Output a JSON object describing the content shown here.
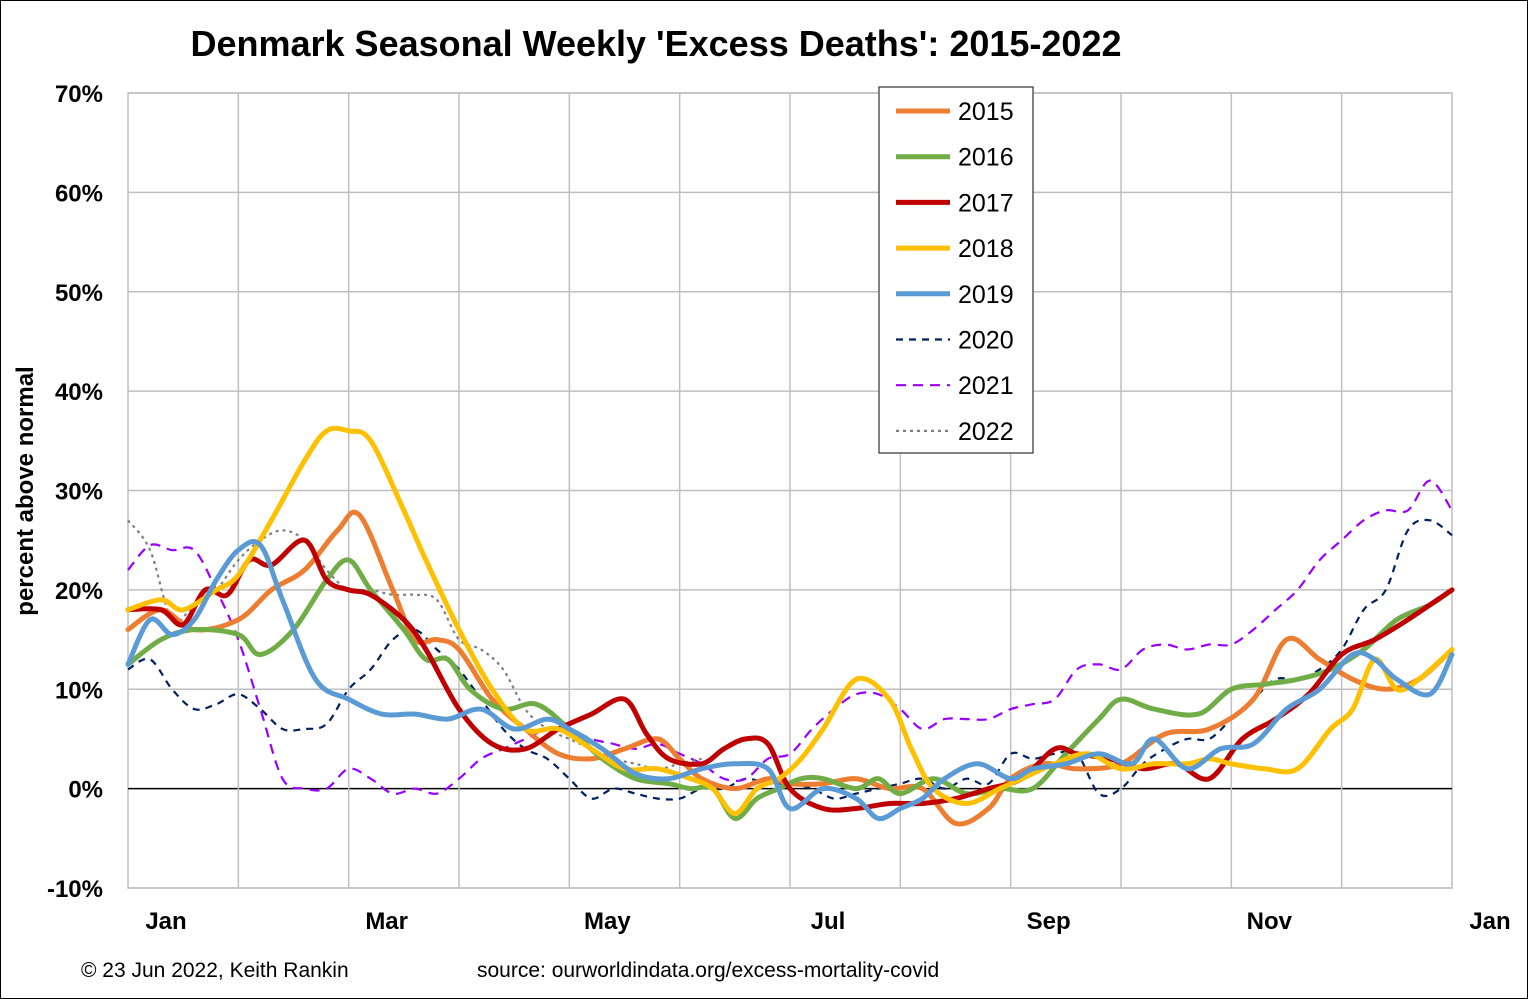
{
  "chart_data": {
    "type": "line",
    "title": "Denmark Seasonal Weekly 'Excess Deaths': 2015-2022",
    "ylabel": "percent above normal",
    "xlabel": "",
    "ylim": [
      -10,
      70
    ],
    "yticks": [
      "-10%",
      "0%",
      "10%",
      "20%",
      "30%",
      "40%",
      "50%",
      "60%",
      "70%"
    ],
    "xticks": [
      "Jan",
      "Mar",
      "May",
      "Jul",
      "Sep",
      "Nov",
      "Jan"
    ],
    "x_unit": "month of year (1 = Jan 1, 13 = Jan 1 next year)",
    "xlim": [
      1,
      13
    ],
    "grid": true,
    "legend_position": "top-center",
    "series": [
      {
        "name": "2015",
        "color": "#ED7D31",
        "dash": "solid",
        "x": [
          1.0,
          1.3,
          1.6,
          2.0,
          2.3,
          2.6,
          2.9,
          3.1,
          3.4,
          3.6,
          3.8,
          4.0,
          4.3,
          4.6,
          4.9,
          5.2,
          5.5,
          5.8,
          6.0,
          6.2,
          6.5,
          6.8,
          7.0,
          7.3,
          7.6,
          7.9,
          8.2,
          8.5,
          8.8,
          9.0,
          9.3,
          9.6,
          10.0,
          10.4,
          10.8,
          11.2,
          11.5,
          11.8,
          12.1,
          12.4,
          12.7,
          13.0
        ],
        "values": [
          16,
          18,
          16,
          17,
          20,
          22,
          26,
          27.5,
          20,
          15,
          15,
          14,
          9,
          6,
          3.5,
          3,
          4,
          5,
          3,
          1,
          0,
          1,
          0.5,
          0.5,
          1,
          0,
          0,
          -3.5,
          -2,
          1,
          2.5,
          2,
          2.5,
          5.5,
          6,
          9,
          15,
          13,
          11,
          10,
          11,
          14
        ]
      },
      {
        "name": "2016",
        "color": "#70AD47",
        "dash": "solid",
        "x": [
          1.0,
          1.3,
          1.6,
          2.0,
          2.2,
          2.5,
          2.8,
          3.0,
          3.2,
          3.5,
          3.7,
          3.9,
          4.1,
          4.4,
          4.7,
          5.0,
          5.3,
          5.6,
          5.9,
          6.1,
          6.3,
          6.5,
          6.7,
          6.9,
          7.1,
          7.3,
          7.6,
          7.8,
          8.0,
          8.3,
          8.6,
          8.9,
          9.2,
          9.5,
          9.8,
          10.0,
          10.3,
          10.7,
          11.0,
          11.3,
          11.6,
          11.9,
          12.2,
          12.5,
          12.8,
          13.0
        ],
        "values": [
          12.5,
          15,
          16,
          15.5,
          13.5,
          16,
          21,
          23,
          20,
          16,
          13,
          13,
          10,
          8,
          8.5,
          6,
          3,
          1,
          0.5,
          0,
          0,
          -3,
          -1,
          0,
          1,
          1,
          0,
          1,
          -0.5,
          1,
          -0.5,
          0,
          0,
          3.5,
          7,
          9,
          8,
          7.5,
          10,
          10.5,
          11,
          12,
          14,
          17,
          18.5,
          20
        ]
      },
      {
        "name": "2017",
        "color": "#C00000",
        "dash": "solid",
        "x": [
          1.0,
          1.3,
          1.5,
          1.7,
          1.9,
          2.1,
          2.3,
          2.6,
          2.8,
          3.0,
          3.2,
          3.5,
          3.7,
          4.0,
          4.3,
          4.6,
          4.9,
          5.2,
          5.5,
          5.7,
          5.9,
          6.2,
          6.4,
          6.6,
          6.8,
          7.0,
          7.3,
          7.6,
          7.9,
          8.2,
          8.5,
          8.8,
          9.1,
          9.4,
          9.6,
          9.9,
          10.2,
          10.5,
          10.8,
          11.1,
          11.4,
          11.7,
          12.0,
          12.3,
          12.6,
          13.0
        ],
        "values": [
          18,
          18,
          16.5,
          20,
          19.5,
          23,
          22.5,
          25,
          21,
          20,
          19.5,
          17,
          14,
          8,
          4.5,
          4,
          6,
          7.5,
          9,
          5.5,
          3,
          2.5,
          4,
          5,
          4.5,
          0,
          -2,
          -2,
          -1.5,
          -1.5,
          -1,
          0,
          1,
          4,
          3.5,
          3,
          2,
          2.5,
          1,
          5,
          7,
          9.5,
          13.5,
          15,
          17,
          20
        ]
      },
      {
        "name": "2018",
        "color": "#FFC000",
        "dash": "solid",
        "x": [
          1.0,
          1.3,
          1.5,
          1.8,
          2.0,
          2.3,
          2.6,
          2.8,
          3.0,
          3.2,
          3.5,
          3.7,
          4.0,
          4.3,
          4.6,
          4.9,
          5.2,
          5.5,
          5.8,
          6.1,
          6.3,
          6.5,
          6.7,
          6.9,
          7.1,
          7.3,
          7.6,
          7.9,
          8.1,
          8.3,
          8.6,
          8.9,
          9.1,
          9.4,
          9.7,
          10.0,
          10.3,
          10.6,
          10.8,
          11.0,
          11.3,
          11.6,
          11.9,
          12.1,
          12.3,
          12.5,
          12.7,
          13.0
        ],
        "values": [
          18,
          19,
          18,
          20,
          21.5,
          27,
          33,
          36,
          36,
          35,
          28,
          23,
          16,
          10,
          6,
          6,
          4,
          2,
          2,
          1,
          0,
          -2.5,
          0,
          1,
          3,
          6,
          11,
          9,
          4,
          0,
          -1.5,
          0,
          1,
          2.5,
          3.5,
          2,
          2.5,
          2.5,
          3,
          2.5,
          2,
          2,
          6,
          8,
          13,
          10,
          11,
          14
        ]
      },
      {
        "name": "2019",
        "color": "#5B9BD5",
        "dash": "solid",
        "x": [
          1.0,
          1.2,
          1.4,
          1.6,
          1.8,
          2.0,
          2.2,
          2.4,
          2.7,
          3.0,
          3.3,
          3.6,
          3.9,
          4.2,
          4.5,
          4.8,
          5.0,
          5.3,
          5.6,
          5.9,
          6.2,
          6.5,
          6.8,
          7.0,
          7.3,
          7.6,
          7.8,
          8.0,
          8.2,
          8.4,
          8.7,
          9.0,
          9.2,
          9.5,
          9.8,
          10.1,
          10.3,
          10.6,
          10.9,
          11.2,
          11.5,
          11.8,
          12.1,
          12.3,
          12.5,
          12.8,
          13.0
        ],
        "values": [
          12.5,
          17,
          15.5,
          17,
          21,
          24,
          24.5,
          19,
          11,
          9,
          7.5,
          7.5,
          7,
          8,
          6,
          7,
          6,
          4,
          1.5,
          1,
          2,
          2.5,
          2,
          -2,
          0,
          -1,
          -3,
          -2,
          -1,
          1,
          2.5,
          1,
          2,
          2.5,
          3.5,
          2.5,
          5,
          2,
          4,
          4.5,
          8,
          10,
          13.5,
          13,
          11,
          9.5,
          13.5
        ]
      },
      {
        "name": "2020",
        "color": "#002060",
        "dash": "7,6",
        "x": [
          1.0,
          1.2,
          1.4,
          1.6,
          1.8,
          2.0,
          2.2,
          2.4,
          2.6,
          2.8,
          3.0,
          3.2,
          3.4,
          3.6,
          3.8,
          4.0,
          4.2,
          4.4,
          4.6,
          4.8,
          5.0,
          5.2,
          5.4,
          5.6,
          5.8,
          6.0,
          6.2,
          6.4,
          6.6,
          6.8,
          7.0,
          7.2,
          7.4,
          7.6,
          7.8,
          8.0,
          8.2,
          8.4,
          8.6,
          8.8,
          9.0,
          9.2,
          9.4,
          9.6,
          9.8,
          10.0,
          10.2,
          10.4,
          10.6,
          10.8,
          11.0,
          11.2,
          11.4,
          11.6,
          11.8,
          12.0,
          12.2,
          12.4,
          12.6,
          12.8,
          13.0
        ],
        "values": [
          12,
          13,
          10,
          8,
          8.5,
          9.5,
          8,
          6,
          6,
          6.5,
          10,
          12,
          15,
          16,
          14,
          12,
          9,
          6,
          4,
          3,
          1,
          -1,
          0,
          -0.5,
          -1,
          -1,
          0,
          0,
          1,
          0.5,
          0.5,
          0,
          -1,
          -0.5,
          0,
          0.5,
          1,
          0,
          1,
          0.5,
          3.5,
          3,
          3.5,
          3.5,
          -0.5,
          0,
          2.5,
          4,
          5,
          5,
          7,
          9,
          11,
          11,
          12,
          14,
          18,
          20,
          26,
          27,
          25.5
        ]
      },
      {
        "name": "2021",
        "color": "#9900FF",
        "dash": "10,7",
        "x": [
          1.0,
          1.2,
          1.4,
          1.6,
          1.8,
          2.0,
          2.2,
          2.4,
          2.6,
          2.8,
          3.0,
          3.2,
          3.4,
          3.6,
          3.8,
          4.0,
          4.2,
          4.4,
          4.6,
          4.8,
          5.0,
          5.2,
          5.4,
          5.6,
          5.8,
          6.0,
          6.2,
          6.4,
          6.6,
          6.8,
          7.0,
          7.2,
          7.4,
          7.6,
          7.8,
          8.0,
          8.2,
          8.4,
          8.6,
          8.8,
          9.0,
          9.2,
          9.4,
          9.6,
          9.8,
          10.0,
          10.2,
          10.4,
          10.6,
          10.8,
          11.0,
          11.2,
          11.4,
          11.6,
          11.8,
          12.0,
          12.2,
          12.4,
          12.6,
          12.8,
          13.0
        ],
        "values": [
          22,
          24.5,
          24,
          24,
          20,
          15,
          8,
          1,
          0,
          0,
          2,
          1,
          -0.5,
          0,
          -0.5,
          1,
          3,
          4,
          5,
          6,
          6,
          5,
          4.5,
          4,
          4.5,
          3.5,
          2.5,
          1,
          1,
          3,
          3.5,
          6,
          8,
          9.5,
          9.5,
          8,
          6,
          7,
          7,
          7,
          8,
          8.5,
          9,
          12,
          12.5,
          12,
          14,
          14.5,
          14,
          14.5,
          14.5,
          16,
          18,
          20,
          23,
          25,
          27,
          28,
          28,
          31,
          28
        ]
      },
      {
        "name": "2022",
        "color": "#7F7F7F",
        "dash": "3,4",
        "x": [
          1.0,
          1.2,
          1.4,
          1.6,
          1.8,
          2.0,
          2.2,
          2.4,
          2.6,
          2.8,
          3.0,
          3.2,
          3.4,
          3.6,
          3.8,
          4.0,
          4.2,
          4.4,
          4.6,
          4.8,
          5.0,
          5.2,
          5.4,
          5.6,
          5.8,
          6.0,
          6.2
        ],
        "values": [
          27,
          24,
          17,
          18.5,
          20,
          23,
          25,
          26,
          25,
          22,
          20,
          20,
          19.5,
          19.5,
          19,
          15,
          14,
          12,
          8,
          6,
          5,
          4,
          3,
          2.5,
          2,
          2.5,
          3
        ]
      }
    ]
  },
  "footer": {
    "copyright": "© 23 Jun 2022, Keith Rankin",
    "source": "source: ourworldindata.org/excess-mortality-covid"
  }
}
